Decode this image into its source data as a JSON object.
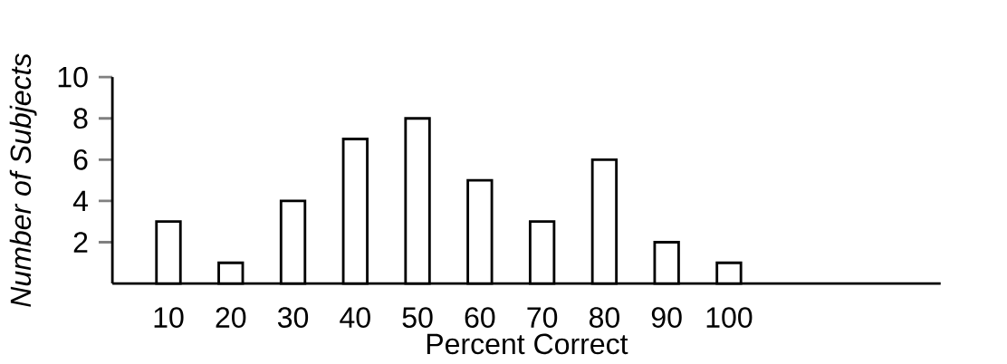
{
  "chart_data": {
    "type": "bar",
    "xlabel": "Percent Correct",
    "ylabel": "Number of Subjects",
    "categories": [
      "10",
      "20",
      "30",
      "40",
      "50",
      "60",
      "70",
      "80",
      "90",
      "100"
    ],
    "values": [
      3,
      1,
      4,
      7,
      8,
      5,
      3,
      6,
      2,
      1
    ],
    "color": "#ffffff",
    "ylim": [
      0,
      10
    ],
    "yticks": [
      2,
      4,
      6,
      8,
      10
    ]
  }
}
